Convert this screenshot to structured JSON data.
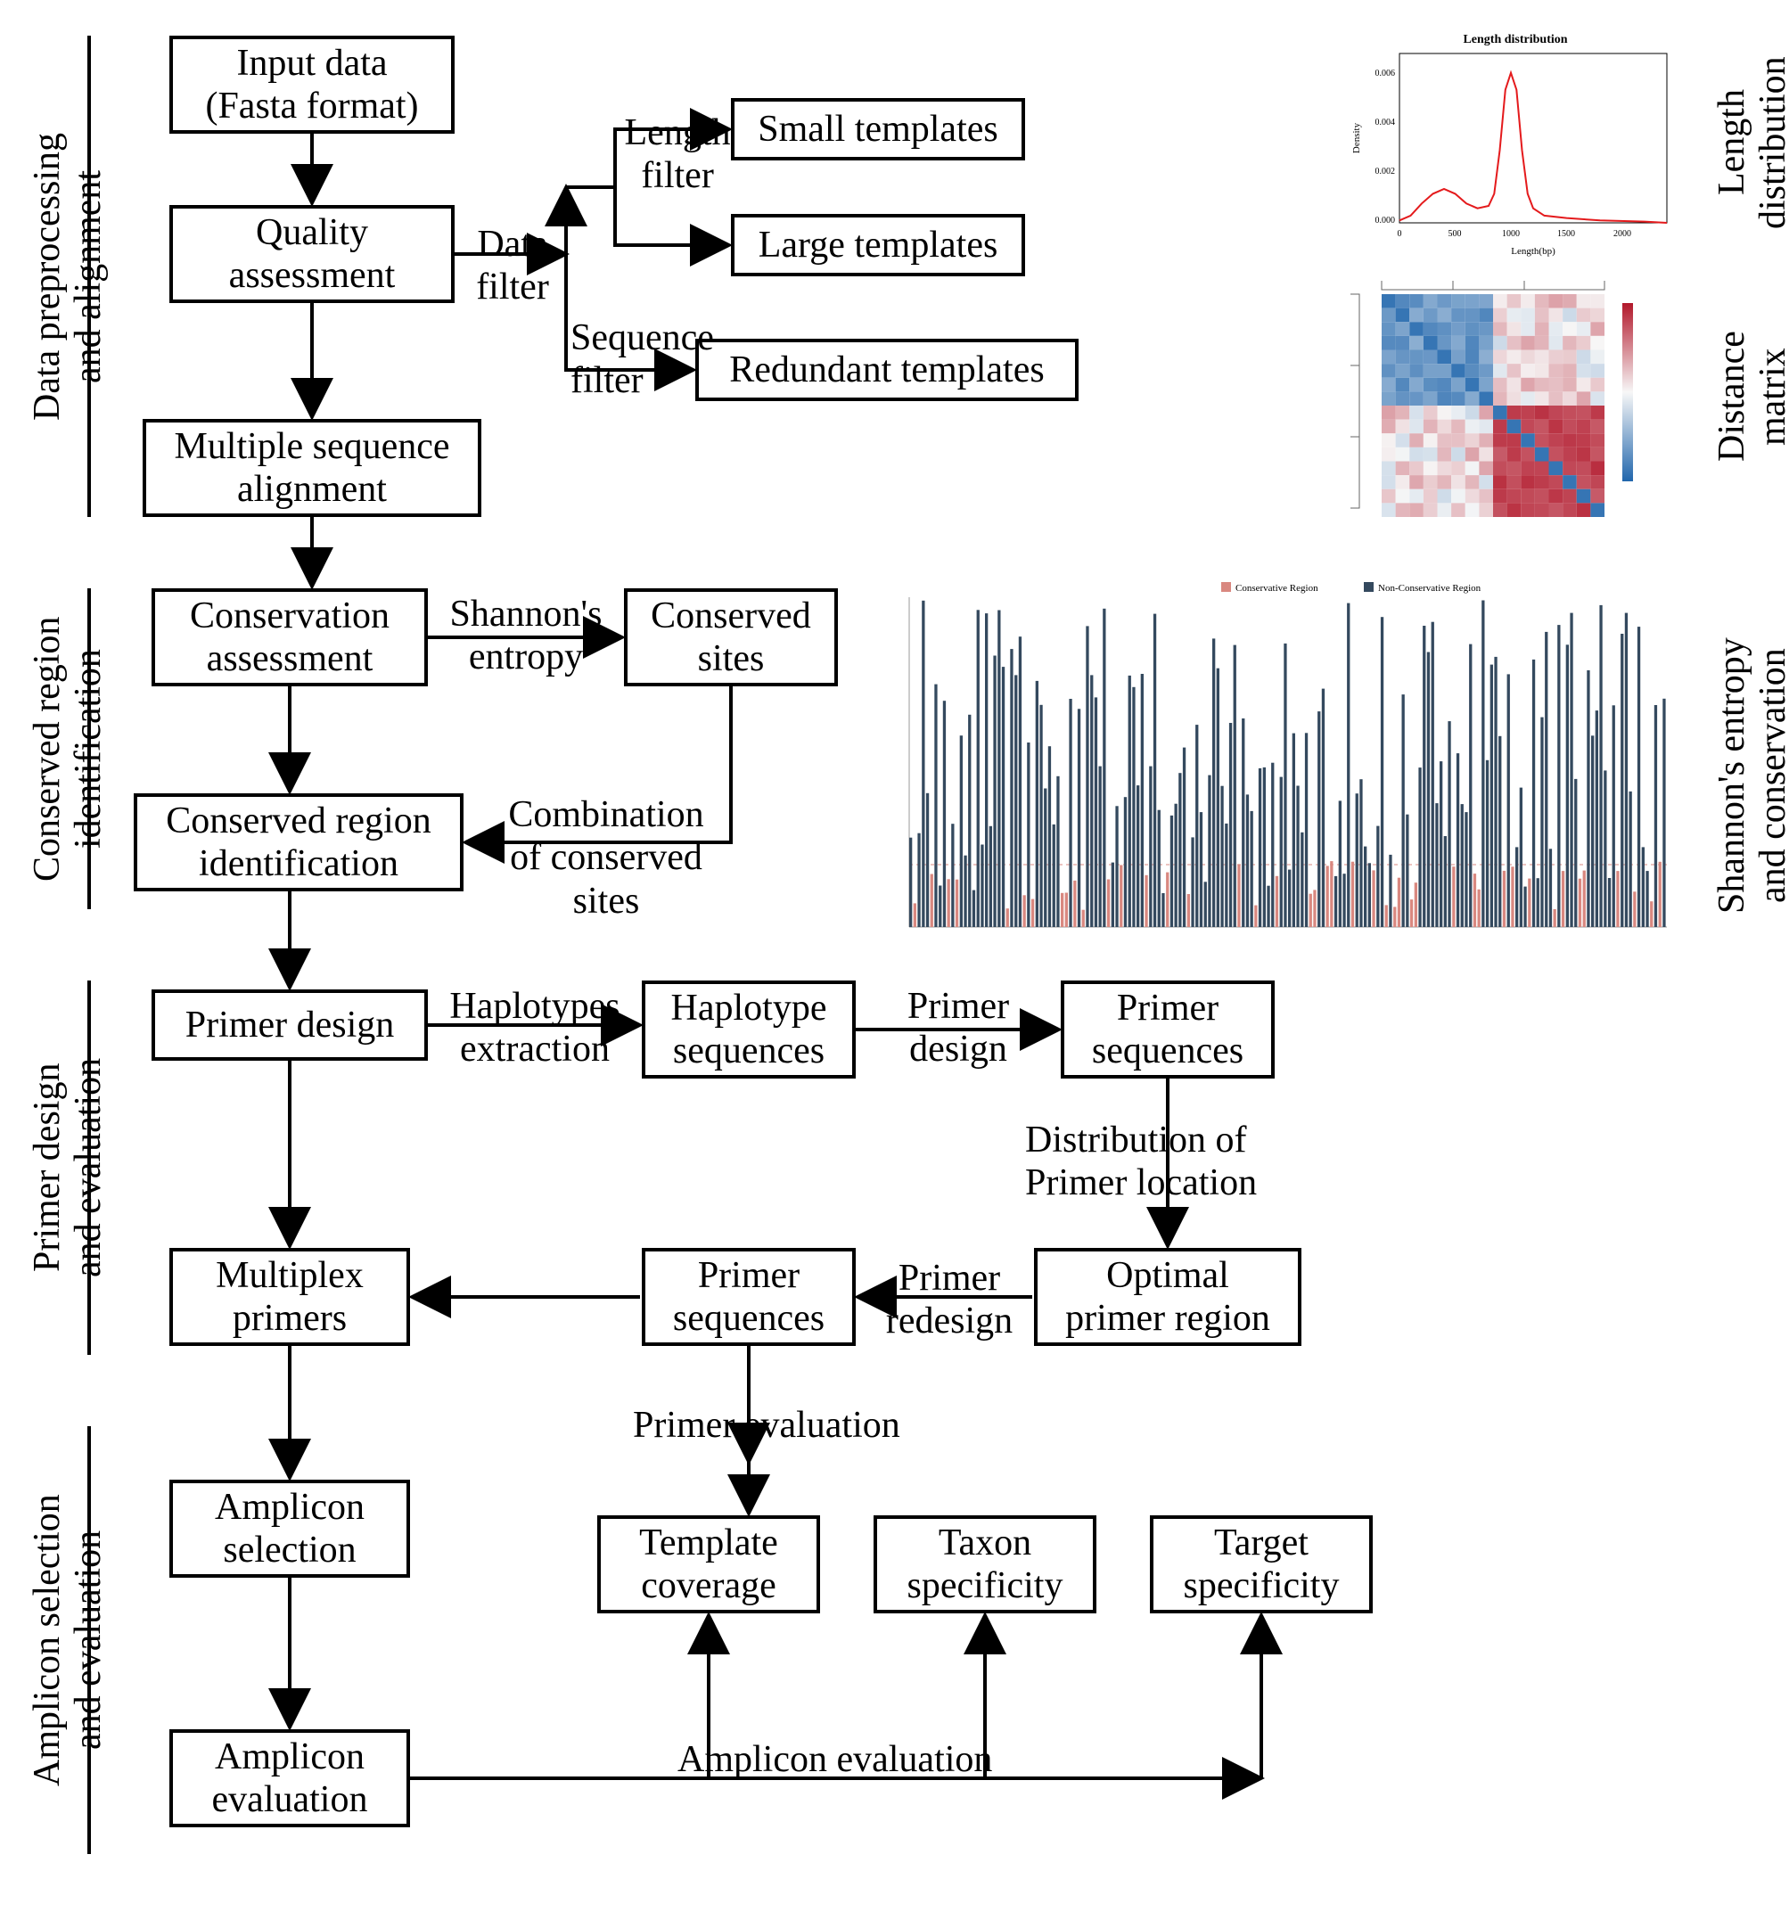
{
  "sections": {
    "s1": "Data preprocessing\nand alignment",
    "s2": "Conserved region\nidentification",
    "s3": "Primer design\nand evaluation",
    "s4": "Amplicon selection\nand evaluation"
  },
  "right_labels": {
    "r1": "Length\ndistribution",
    "r2": "Distance\nmatrix",
    "r3": "Shannon's entropy\nand conservation"
  },
  "nodes": {
    "input_data": "Input data\n(Fasta format)",
    "quality": "Quality\nassessment",
    "msa": "Multiple sequence\nalignment",
    "small_tpl": "Small templates",
    "large_tpl": "Large templates",
    "redund_tpl": "Redundant templates",
    "cons_assess": "Conservation\nassessment",
    "cons_sites": "Conserved\nsites",
    "cons_region": "Conserved region\nidentification",
    "primer_design": "Primer design",
    "haplo_seq": "Haplotype\nsequences",
    "primer_seq1": "Primer\nsequences",
    "opt_region": "Optimal\nprimer region",
    "primer_seq2": "Primer\nsequences",
    "multiplex": "Multiplex\nprimers",
    "tpl_cov": "Template\ncoverage",
    "taxon_spec": "Taxon\nspecificity",
    "target_spec": "Target\nspecificity",
    "amp_sel": "Amplicon\nselection",
    "amp_eval": "Amplicon\nevaluation"
  },
  "edge_labels": {
    "data_filter": "Data\nfilter",
    "length_filter": "Length\nfilter",
    "seq_filter": "Sequence\nfilter",
    "shannon": "Shannon's\nentropy",
    "comb_sites": "Combination\nof conserved\nsites",
    "hap_extract": "Haplotypes\nextraction",
    "primer_design_lbl": "Primer\ndesign",
    "dist_primer": "Distribution of\nPrimer location",
    "primer_redesign": "Primer\nredesign",
    "primer_eval": "Primer evaluation",
    "amp_eval_lbl": "Amplicon evaluation"
  },
  "length_chart": {
    "title": "Length distribution",
    "xlabel": "Length(bp)",
    "ylabel": "Density",
    "color": "#e41a1c",
    "xlim": [
      0,
      2400
    ],
    "ylim": [
      0,
      0.007
    ],
    "xticks": [
      0,
      500,
      1000,
      1500,
      2000
    ],
    "yticks": [
      0.0,
      0.002,
      0.004,
      0.006
    ],
    "points": [
      [
        0,
        0.0001
      ],
      [
        100,
        0.0003
      ],
      [
        200,
        0.0008
      ],
      [
        300,
        0.0012
      ],
      [
        400,
        0.0014
      ],
      [
        500,
        0.0012
      ],
      [
        600,
        0.0008
      ],
      [
        700,
        0.0006
      ],
      [
        800,
        0.0007
      ],
      [
        850,
        0.0012
      ],
      [
        900,
        0.003
      ],
      [
        950,
        0.0055
      ],
      [
        1000,
        0.0062
      ],
      [
        1050,
        0.0055
      ],
      [
        1100,
        0.003
      ],
      [
        1150,
        0.0012
      ],
      [
        1200,
        0.0006
      ],
      [
        1300,
        0.0003
      ],
      [
        1500,
        0.0002
      ],
      [
        1800,
        0.0001
      ],
      [
        2200,
        5e-05
      ],
      [
        2400,
        0.0
      ]
    ]
  },
  "heatmap": {
    "n": 16,
    "colors_low": "#b2182b",
    "colors_mid": "#f7f7f7",
    "colors_high": "#2166ac"
  },
  "entropy_chart": {
    "n_bars": 180,
    "color_conservative": "#d98880",
    "color_nonconservative": "#34495e",
    "ylim": [
      0,
      1.0
    ],
    "legend": [
      "Conservative Region",
      "Non-Conservative Region"
    ]
  },
  "style": {
    "box_border": "#000000",
    "box_border_width": 4,
    "arrow_color": "#000000",
    "arrow_width": 4,
    "font_family": "Times New Roman",
    "font_size_box": 42,
    "font_size_label": 42,
    "background": "#ffffff"
  }
}
